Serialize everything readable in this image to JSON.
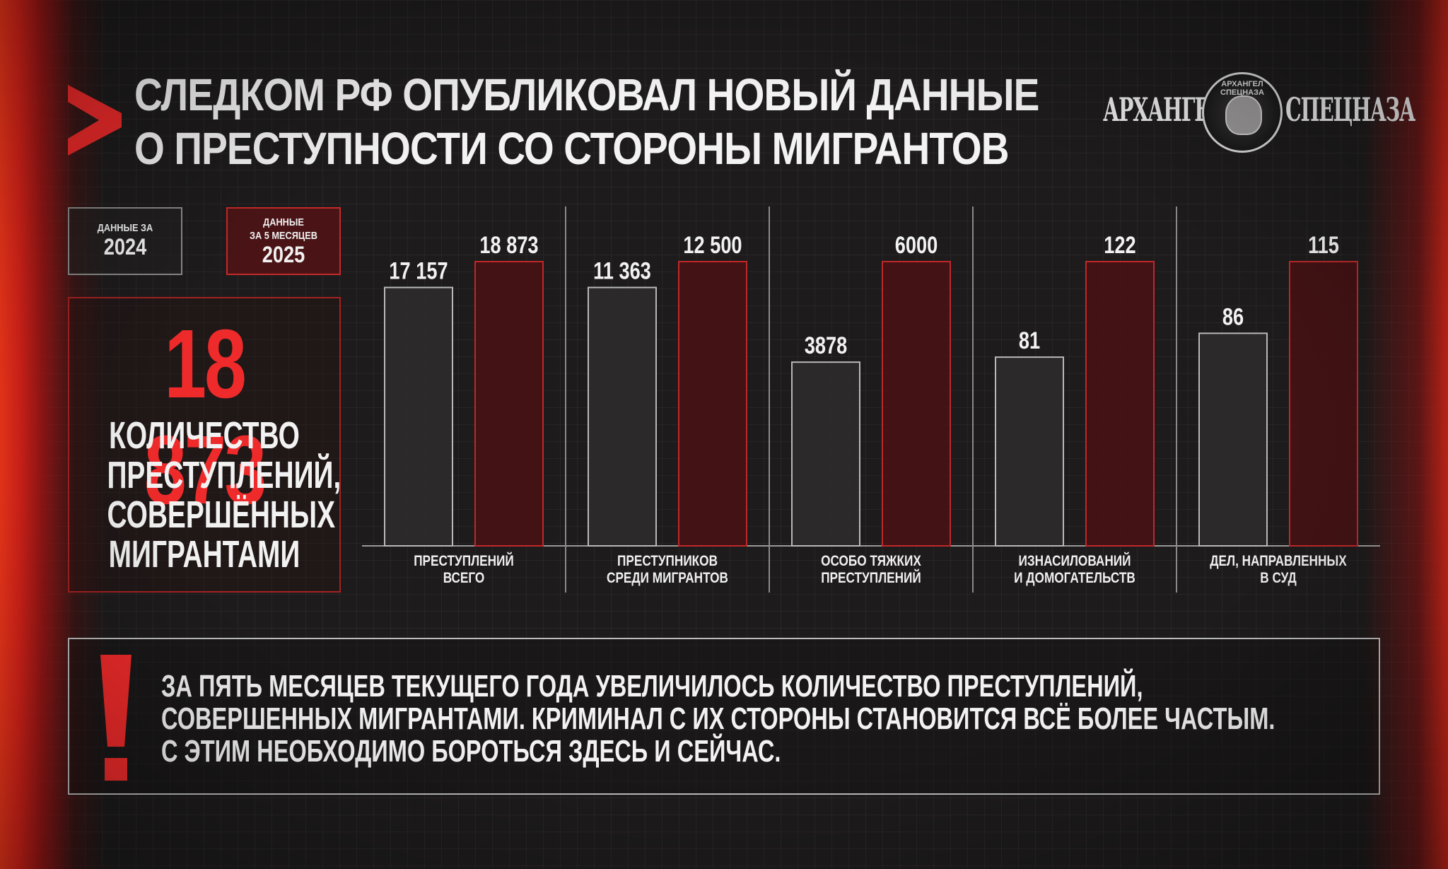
{
  "title": {
    "line1": "СЛЕДКОМ РФ ОПУБЛИКОВАЛ НОВЫЙ ДАННЫЕ",
    "line2": "О ПРЕСТУПНОСТИ СО СТОРОНЫ МИГРАНТОВ"
  },
  "logo": {
    "left_word": "АРХАНГЕЛ",
    "emblem_text": "АРХАНГЕЛ СПЕЦНАЗА",
    "right_word": "СПЕЦНАЗА"
  },
  "legend": {
    "series_2024": {
      "caption": "ДАННЫЕ ЗА",
      "year": "2024"
    },
    "series_2025": {
      "caption_line1": "ДАННЫЕ",
      "caption_line2": "ЗА 5 МЕСЯЦЕВ",
      "year": "2025"
    }
  },
  "kpi": {
    "value": "18 873",
    "label_lines": [
      "КОЛИЧЕСТВО",
      "ПРЕСТУПЛЕНИЙ,",
      "СОВЕРШЁННЫХ",
      "МИГРАНТАМИ"
    ]
  },
  "chart_data": {
    "type": "bar",
    "categories": [
      [
        "ПРЕСТУПЛЕНИЙ",
        "ВСЕГО"
      ],
      [
        "ПРЕСТУПНИКОВ",
        "СРЕДИ МИГРАНТОВ"
      ],
      [
        "ОСОБО ТЯЖКИХ",
        "ПРЕСТУПЛЕНИЙ"
      ],
      [
        "ИЗНАСИЛОВАНИЙ",
        "И ДОМОГАТЕЛЬСТВ"
      ],
      [
        "ДЕЛ, НАПРАВЛЕННЫХ",
        "В СУД"
      ]
    ],
    "series": [
      {
        "name": "2024",
        "color": "#2c2a2a",
        "stroke": "#b9b9b9",
        "values": [
          17157,
          11363,
          3878,
          81,
          86
        ],
        "labels": [
          "17 157",
          "11 363",
          "3878",
          "81",
          "86"
        ]
      },
      {
        "name": "2025",
        "color": "#451214",
        "stroke": "#c0282a",
        "values": [
          18873,
          12500,
          6000,
          122,
          115
        ],
        "labels": [
          "18 873",
          "12 500",
          "6000",
          "122",
          "115"
        ]
      }
    ],
    "scale": "independent per category",
    "grid": true,
    "legend_position": "top-left"
  },
  "alert": {
    "mark": "!",
    "lines": [
      "ЗА ПЯТЬ МЕСЯЦЕВ ТЕКУЩЕГО ГОДА УВЕЛИЧИЛОСЬ КОЛИЧЕСТВО ПРЕСТУПЛЕНИЙ,",
      "СОВЕРШЕННЫХ МИГРАНТАМИ. КРИМИНАЛ С ИХ СТОРОНЫ СТАНОВИТСЯ ВСЁ БОЛЕЕ ЧАСТЫМ.",
      "С ЭТИМ НЕОБХОДИМО БОРОТЬСЯ ЗДЕСЬ И СЕЙЧАС."
    ]
  },
  "colors": {
    "accent_red": "#ee2a2a",
    "bar_2024_fill": "#2c2a2a",
    "bar_2025_fill": "#451214",
    "text": "#f2f2f2"
  }
}
